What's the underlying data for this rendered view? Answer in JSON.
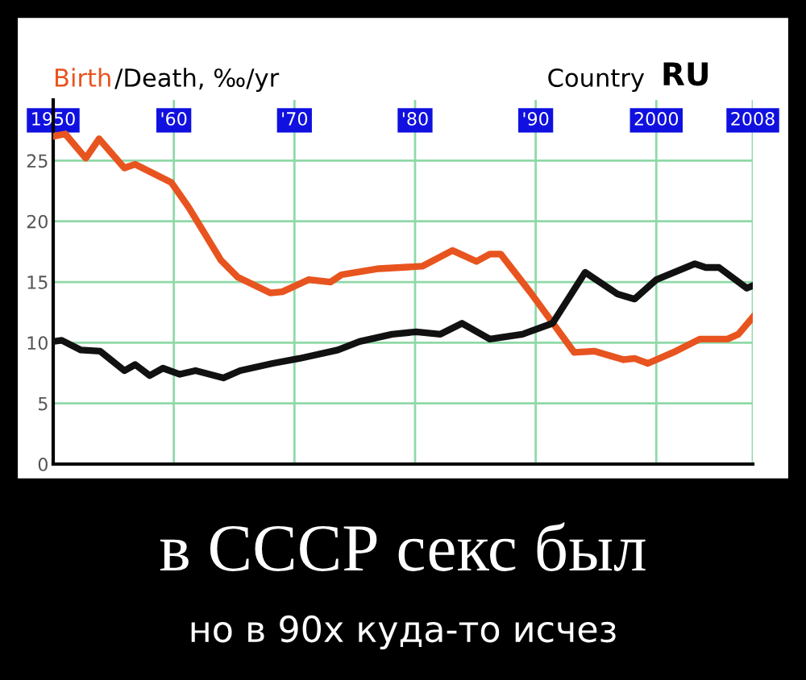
{
  "chart_data": {
    "type": "line",
    "title": "в СССР секс был",
    "subtitle": "но в 90х куда-то исчез",
    "ylabel": "/Death, ‰/yr",
    "annotations": [
      "Country",
      "RU"
    ],
    "series": [
      {
        "name": "Birth",
        "color": "#e8541f",
        "x": [
          1950,
          1951,
          1952.7,
          1953.8,
          1955.9,
          1956.8,
          1959.8,
          1961.2,
          1963.9,
          1965.3,
          1968,
          1969,
          1971.2,
          1973,
          1973.9,
          1977,
          1980.6,
          1983.1,
          1985.1,
          1986.2,
          1987.1,
          1989.6,
          1993.2,
          1994.9,
          1997.3,
          1998.2,
          1999.3,
          2001.4,
          2003.6,
          2005.9,
          2006.8,
          2008
        ],
        "values": [
          27.0,
          27.2,
          25.2,
          26.8,
          24.4,
          24.7,
          23.2,
          21.2,
          16.8,
          15.4,
          14.1,
          14.2,
          15.2,
          15.0,
          15.6,
          16.1,
          16.3,
          17.6,
          16.7,
          17.3,
          17.3,
          14.1,
          9.2,
          9.3,
          8.6,
          8.7,
          8.3,
          9.2,
          10.3,
          10.3,
          10.7,
          12.1
        ]
      },
      {
        "color": "#111111",
        "x": [
          1950,
          1950.7,
          1952.3,
          1953.9,
          1955.9,
          1956.8,
          1958,
          1959.1,
          1960.5,
          1961.8,
          1964.1,
          1965.5,
          1968.2,
          1970.4,
          1973.6,
          1975.4,
          1978.1,
          1980.1,
          1982.1,
          1983.9,
          1986.2,
          1988.9,
          1991.4,
          1994.1,
          1996.8,
          1998.2,
          2000,
          2003.2,
          2004.1,
          2005.2,
          2007.5,
          2008
        ],
        "values": [
          10.1,
          10.2,
          9.4,
          9.3,
          7.7,
          8.2,
          7.3,
          7.9,
          7.4,
          7.7,
          7.1,
          7.7,
          8.3,
          8.7,
          9.4,
          10.1,
          10.7,
          10.9,
          10.7,
          11.6,
          10.3,
          10.7,
          11.6,
          15.8,
          14.0,
          13.6,
          15.2,
          16.5,
          16.2,
          16.2,
          14.5,
          14.7
        ]
      }
    ],
    "xlim": [
      1950,
      2008
    ],
    "xticks": [
      {
        "value": 1950,
        "label": "1950"
      },
      {
        "value": 1960,
        "label": "'60"
      },
      {
        "value": 1970,
        "label": "'70"
      },
      {
        "value": 1980,
        "label": "'80"
      },
      {
        "value": 1990,
        "label": "'90"
      },
      {
        "value": 2000,
        "label": "2000"
      },
      {
        "value": 2008,
        "label": "2008"
      }
    ],
    "ylim": [
      0,
      30
    ],
    "yticks": [
      0,
      5,
      10,
      15,
      20,
      25
    ],
    "grid": true,
    "marker": "none",
    "line_style": "solid"
  }
}
